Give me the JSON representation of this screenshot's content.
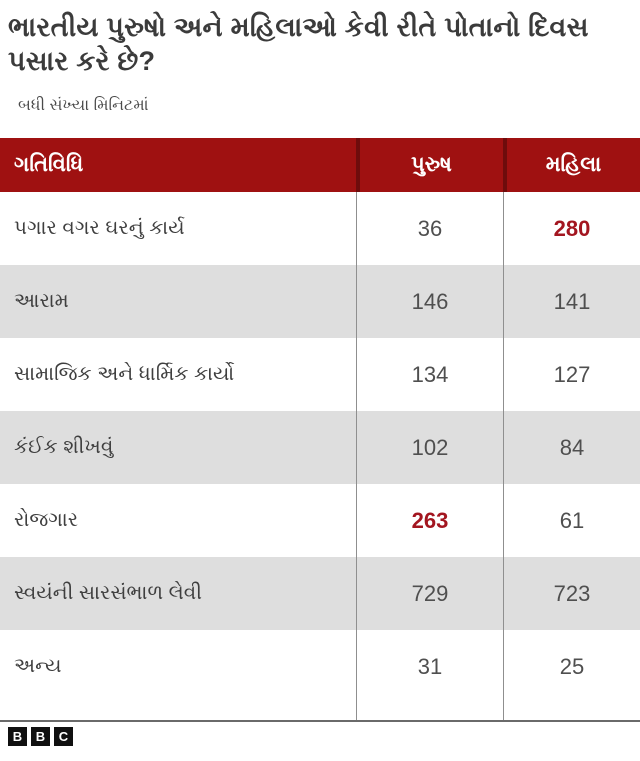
{
  "title": "ભારતીય પુરુષો અને મહિલાઓ કેવી રીતે પોતાનો દિવસ પસાર કરે છે?",
  "subtitle": "બધી સંખ્યા મિનિટમાં",
  "colors": {
    "header_bg": "#9f1111",
    "header_divider": "#6e0c0c",
    "row_alt_bg": "#dedede",
    "body_divider": "#8f8f8f",
    "highlight_red": "#a31620",
    "text": "#3f3f3f"
  },
  "table": {
    "columns": [
      "ગતિવિધિ",
      "પુરુષ",
      "મહિલા"
    ],
    "rows": [
      {
        "activity": "પગાર વગર ઘરનું કાર્ય",
        "men": "36",
        "women": "280",
        "highlight": "women"
      },
      {
        "activity": "આરામ",
        "men": "146",
        "women": "141",
        "highlight": ""
      },
      {
        "activity": "સામાજિક અને ધાર્મિક કાર્યો",
        "men": "134",
        "women": "127",
        "highlight": ""
      },
      {
        "activity": "કંઈક શીખવું",
        "men": "102",
        "women": "84",
        "highlight": ""
      },
      {
        "activity": "રોજગાર",
        "men": "263",
        "women": "61",
        "highlight": "men"
      },
      {
        "activity": "સ્વયંની સારસંભાળ લેવી",
        "men": "729",
        "women": "723",
        "highlight": ""
      },
      {
        "activity": "અન્ય",
        "men": "31",
        "women": "25",
        "highlight": ""
      }
    ]
  },
  "chart_data": {
    "type": "table",
    "title": "ભારતીય પુરુષો અને મહિલાઓ કેવી રીતે પોતાનો દિવસ પસાર કરે છે?",
    "subtitle": "બધી સંખ્યા મિનિટમાં",
    "columns": [
      "ગતિવિધિ",
      "પુરુષ",
      "મહિલા"
    ],
    "categories": [
      "પગાર વગર ઘરનું કાર્ય",
      "આરામ",
      "સામાજિક અને ધાર્મિક કાર્યો",
      "કંઈક શીખવું",
      "રોજગાર",
      "સ્વયંની સારસંભાળ લેવી",
      "અન્ય"
    ],
    "series": [
      {
        "name": "પુરુષ",
        "values": [
          36,
          146,
          134,
          102,
          263,
          729,
          31
        ]
      },
      {
        "name": "મહિલા",
        "values": [
          280,
          141,
          127,
          84,
          61,
          723,
          25
        ]
      }
    ],
    "highlighted_cells": [
      {
        "row": "પગાર વગર ઘરનું કાર્ય",
        "column": "મહિલા",
        "value": 280
      },
      {
        "row": "રોજગાર",
        "column": "પુરુષ",
        "value": 263
      }
    ],
    "units": "minutes"
  },
  "footer": {
    "logo_letters": [
      "B",
      "B",
      "C"
    ]
  }
}
